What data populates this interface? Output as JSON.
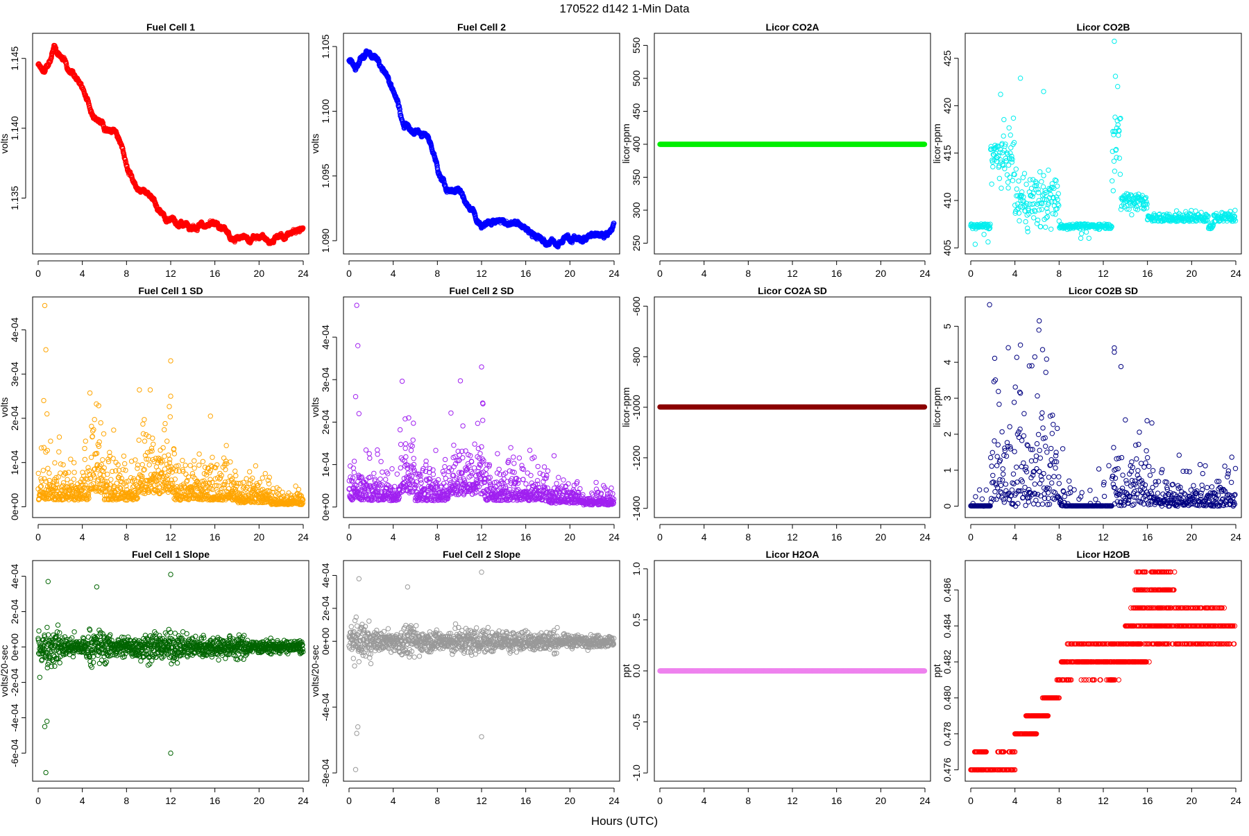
{
  "figure": {
    "title": "170522   d142   1-Min Data",
    "xlabel": "Hours (UTC)"
  },
  "chart_data": [
    {
      "type": "scatter",
      "title": "Fuel Cell 1",
      "ylabel": "volts",
      "color": "#ff0000",
      "xlim": [
        0,
        24
      ],
      "ylim": [
        1.1313,
        1.1465
      ],
      "xticks": [
        "0",
        "4",
        "8",
        "12",
        "16",
        "20",
        "24"
      ],
      "yticks": [
        {
          "v": 1.135,
          "label": "1.135"
        },
        {
          "v": 1.14,
          "label": "1.140"
        },
        {
          "v": 1.145,
          "label": "1.145"
        }
      ],
      "gen": "walk",
      "noise": 0.00025,
      "anchors": [
        [
          0,
          1.1445
        ],
        [
          0.6,
          1.144
        ],
        [
          1.0,
          1.1448
        ],
        [
          1.5,
          1.1457
        ],
        [
          2.2,
          1.145
        ],
        [
          3.5,
          1.1438
        ],
        [
          4.5,
          1.142
        ],
        [
          5.0,
          1.1405
        ],
        [
          6.0,
          1.14
        ],
        [
          7.0,
          1.1398
        ],
        [
          7.6,
          1.1385
        ],
        [
          8.2,
          1.137
        ],
        [
          8.8,
          1.136
        ],
        [
          9.5,
          1.1357
        ],
        [
          10.5,
          1.135
        ],
        [
          11.0,
          1.134
        ],
        [
          12.0,
          1.1333
        ],
        [
          13.0,
          1.1332
        ],
        [
          15.5,
          1.1331
        ],
        [
          16.5,
          1.1328
        ],
        [
          17.5,
          1.1322
        ],
        [
          19.0,
          1.132
        ],
        [
          20.0,
          1.1322
        ],
        [
          21.0,
          1.132
        ],
        [
          22.0,
          1.1322
        ],
        [
          23.0,
          1.1325
        ],
        [
          24.0,
          1.133
        ]
      ]
    },
    {
      "type": "scatter",
      "title": "Fuel Cell 2",
      "ylabel": "volts",
      "color": "#0000ff",
      "xlim": [
        0,
        24
      ],
      "ylim": [
        1.0893,
        1.1057
      ],
      "xticks": [
        "0",
        "4",
        "8",
        "12",
        "16",
        "20",
        "24"
      ],
      "yticks": [
        {
          "v": 1.09,
          "label": "1.090"
        },
        {
          "v": 1.095,
          "label": "1.095"
        },
        {
          "v": 1.1,
          "label": "1.100"
        },
        {
          "v": 1.105,
          "label": "1.105"
        }
      ],
      "gen": "walk",
      "noise": 0.00028,
      "anchors": [
        [
          0,
          1.104
        ],
        [
          0.6,
          1.103
        ],
        [
          1.0,
          1.104
        ],
        [
          1.5,
          1.1045
        ],
        [
          2.5,
          1.104
        ],
        [
          3.5,
          1.1025
        ],
        [
          4.5,
          1.1005
        ],
        [
          5.0,
          1.0988
        ],
        [
          6.0,
          1.0985
        ],
        [
          7.0,
          1.0982
        ],
        [
          7.6,
          1.097
        ],
        [
          8.2,
          1.095
        ],
        [
          8.8,
          1.094
        ],
        [
          10.0,
          1.094
        ],
        [
          11.0,
          1.0925
        ],
        [
          12.0,
          1.0915
        ],
        [
          13.0,
          1.0915
        ],
        [
          15.5,
          1.0912
        ],
        [
          16.5,
          1.0905
        ],
        [
          17.5,
          1.09
        ],
        [
          19.0,
          1.0898
        ],
        [
          20.0,
          1.0902
        ],
        [
          21.0,
          1.0902
        ],
        [
          22.0,
          1.0904
        ],
        [
          23.0,
          1.0905
        ],
        [
          24.0,
          1.0912
        ]
      ]
    },
    {
      "type": "scatter",
      "title": "Licor CO2A",
      "ylabel": "licor-ppm",
      "color": "#00ee00",
      "xlim": [
        0,
        24
      ],
      "ylim": [
        240,
        562
      ],
      "xticks": [
        "0",
        "4",
        "8",
        "12",
        "16",
        "20",
        "24"
      ],
      "yticks": [
        {
          "v": 250,
          "label": "250"
        },
        {
          "v": 300,
          "label": "300"
        },
        {
          "v": 350,
          "label": "350"
        },
        {
          "v": 400,
          "label": "400"
        },
        {
          "v": 450,
          "label": "450"
        },
        {
          "v": 500,
          "label": "500"
        },
        {
          "v": 550,
          "label": "550"
        }
      ],
      "gen": "constant",
      "value": 400
    },
    {
      "type": "scatter",
      "title": "Licor CO2B",
      "ylabel": "licor-ppm",
      "color": "#00eeee",
      "xlim": [
        0,
        24
      ],
      "ylim": [
        404.8,
        427.2
      ],
      "xticks": [
        "0",
        "4",
        "8",
        "12",
        "16",
        "20",
        "24"
      ],
      "yticks": [
        {
          "v": 405,
          "label": "405"
        },
        {
          "v": 410,
          "label": "410"
        },
        {
          "v": 415,
          "label": "415"
        },
        {
          "v": 420,
          "label": "420"
        },
        {
          "v": 425,
          "label": "425"
        }
      ],
      "gen": "co2b"
    },
    {
      "type": "scatter",
      "title": "Fuel Cell 1 SD",
      "ylabel": "volts",
      "color": "#ffa500",
      "xlim": [
        0,
        24
      ],
      "ylim": [
        -1.5e-05,
        0.000465
      ],
      "xticks": [
        "0",
        "4",
        "8",
        "12",
        "16",
        "20",
        "24"
      ],
      "yticks": [
        {
          "v": 0,
          "label": "0e+00"
        },
        {
          "v": 0.0001,
          "label": "1e-04"
        },
        {
          "v": 0.0002,
          "label": "2e-04"
        },
        {
          "v": 0.0003,
          "label": "3e-04"
        },
        {
          "v": 0.0004,
          "label": "4e-04"
        }
      ],
      "gen": "sd",
      "base": 3e-05,
      "scale": 0.0001,
      "spikes": [
        [
          0.6,
          0.000455
        ],
        [
          0.7,
          0.000355
        ],
        [
          0.5,
          0.00024
        ],
        [
          0.8,
          0.00021
        ],
        [
          12.0,
          0.00033
        ],
        [
          12.0,
          0.00025
        ],
        [
          15.6,
          0.000205
        ]
      ]
    },
    {
      "type": "scatter",
      "title": "Fuel Cell 2 SD",
      "ylabel": "volts",
      "color": "#a020f0",
      "xlim": [
        0,
        24
      ],
      "ylim": [
        -1.5e-05,
        0.000485
      ],
      "xticks": [
        "0",
        "4",
        "8",
        "12",
        "16",
        "20",
        "24"
      ],
      "yticks": [
        {
          "v": 0,
          "label": "0e+00"
        },
        {
          "v": 0.0001,
          "label": "1e-04"
        },
        {
          "v": 0.0002,
          "label": "2e-04"
        },
        {
          "v": 0.0003,
          "label": "3e-04"
        },
        {
          "v": 0.0004,
          "label": "4e-04"
        }
      ],
      "gen": "sd",
      "base": 3e-05,
      "scale": 0.0001,
      "spikes": [
        [
          0.7,
          0.000475
        ],
        [
          0.8,
          0.00038
        ],
        [
          0.6,
          0.00026
        ],
        [
          0.9,
          0.00022
        ],
        [
          12.0,
          0.00033
        ],
        [
          12.1,
          0.000245
        ],
        [
          5.4,
          0.00021
        ]
      ]
    },
    {
      "type": "scatter",
      "title": "Licor CO2A SD",
      "ylabel": "licor-ppm",
      "color": "#8b0000",
      "xlim": [
        0,
        24
      ],
      "ylim": [
        -1420,
        -580
      ],
      "xticks": [
        "0",
        "4",
        "8",
        "12",
        "16",
        "20",
        "24"
      ],
      "yticks": [
        {
          "v": -1400,
          "label": "-1400"
        },
        {
          "v": -1200,
          "label": "-1200"
        },
        {
          "v": -1000,
          "label": "-1000"
        },
        {
          "v": -800,
          "label": "-800"
        },
        {
          "v": -600,
          "label": "-600"
        }
      ],
      "gen": "constant",
      "value": -999
    },
    {
      "type": "scatter",
      "title": "Licor CO2B SD",
      "ylabel": "licor-ppm",
      "color": "#000080",
      "xlim": [
        0,
        24
      ],
      "ylim": [
        -0.2,
        5.7
      ],
      "xticks": [
        "0",
        "4",
        "8",
        "12",
        "16",
        "20",
        "24"
      ],
      "yticks": [
        {
          "v": 0,
          "label": "0"
        },
        {
          "v": 1,
          "label": "1"
        },
        {
          "v": 2,
          "label": "2"
        },
        {
          "v": 3,
          "label": "3"
        },
        {
          "v": 4,
          "label": "4"
        },
        {
          "v": 5,
          "label": "5"
        }
      ],
      "gen": "co2bsd",
      "spikes": [
        [
          1.7,
          5.6
        ],
        [
          6.2,
          5.15
        ],
        [
          4.5,
          4.48
        ],
        [
          13.0,
          4.4
        ],
        [
          13.0,
          4.28
        ],
        [
          6.5,
          4.35
        ],
        [
          5.8,
          4.15
        ],
        [
          5.3,
          3.9
        ]
      ]
    },
    {
      "type": "scatter",
      "title": "Fuel Cell 1 Slope",
      "ylabel": "volts/20-sec",
      "color": "#006400",
      "xlim": [
        0,
        24
      ],
      "ylim": [
        -0.000735,
        0.000465
      ],
      "xticks": [
        "0",
        "4",
        "8",
        "12",
        "16",
        "20",
        "24"
      ],
      "yticks": [
        {
          "v": -0.0006,
          "label": "-6e-04"
        },
        {
          "v": -0.0004,
          "label": "-4e-04"
        },
        {
          "v": -0.0002,
          "label": "-2e-04"
        },
        {
          "v": 0,
          "label": "0e+00"
        },
        {
          "v": 0.0002,
          "label": "2e-04"
        },
        {
          "v": 0.0004,
          "label": "4e-04"
        }
      ],
      "gen": "slope",
      "scale": 6e-05,
      "spikes": [
        [
          0.7,
          -0.00071
        ],
        [
          0.6,
          -0.00045
        ],
        [
          0.8,
          -0.00042
        ],
        [
          12.0,
          0.00041
        ],
        [
          12.0,
          -0.0006
        ],
        [
          0.9,
          0.00037
        ],
        [
          5.3,
          0.00034
        ]
      ]
    },
    {
      "type": "scatter",
      "title": "Fuel Cell 2 Slope",
      "ylabel": "volts/20-sec",
      "color": "#999999",
      "xlim": [
        0,
        24
      ],
      "ylim": [
        -0.000825,
        0.000465
      ],
      "xticks": [
        "0",
        "4",
        "8",
        "12",
        "16",
        "20",
        "24"
      ],
      "yticks": [
        {
          "v": -0.0008,
          "label": "-8e-04"
        },
        {
          "v": -0.0004,
          "label": "-4e-04"
        },
        {
          "v": 0,
          "label": "0e+00"
        },
        {
          "v": 0.0002,
          "label": "2e-04"
        },
        {
          "v": 0.0004,
          "label": "4e-04"
        }
      ],
      "gen": "slope",
      "scale": 6e-05,
      "spikes": [
        [
          0.6,
          -0.00078
        ],
        [
          0.7,
          -0.00056
        ],
        [
          0.8,
          -0.00052
        ],
        [
          12.0,
          0.00042
        ],
        [
          12.0,
          -0.00058
        ],
        [
          0.9,
          0.00038
        ],
        [
          5.3,
          0.00033
        ]
      ]
    },
    {
      "type": "scatter",
      "title": "Licor H2OA",
      "ylabel": "ppt",
      "color": "#ee82ee",
      "xlim": [
        0,
        24
      ],
      "ylim": [
        -1.04,
        1.04
      ],
      "xticks": [
        "0",
        "4",
        "8",
        "12",
        "16",
        "20",
        "24"
      ],
      "yticks": [
        {
          "v": -1.0,
          "label": "-1.0"
        },
        {
          "v": -0.5,
          "label": "-0.5"
        },
        {
          "v": 0.0,
          "label": "0.0"
        },
        {
          "v": 0.5,
          "label": "0.5"
        },
        {
          "v": 1.0,
          "label": "1.0"
        }
      ],
      "gen": "constant",
      "value": 0
    },
    {
      "type": "scatter",
      "title": "Licor H2OB",
      "ylabel": "ppt",
      "color": "#ff0000",
      "xlim": [
        0,
        24
      ],
      "ylim": [
        0.4756,
        0.4874
      ],
      "xticks": [
        "0",
        "4",
        "8",
        "12",
        "16",
        "20",
        "24"
      ],
      "yticks": [
        {
          "v": 0.476,
          "label": "0.476"
        },
        {
          "v": 0.478,
          "label": "0.478"
        },
        {
          "v": 0.48,
          "label": "0.480"
        },
        {
          "v": 0.482,
          "label": "0.482"
        },
        {
          "v": 0.484,
          "label": "0.484"
        },
        {
          "v": 0.486,
          "label": "0.486"
        }
      ],
      "gen": "steps",
      "segments": [
        [
          0,
          4,
          0.476,
          0.8
        ],
        [
          0.3,
          1.5,
          0.477,
          0.7
        ],
        [
          2.4,
          3.0,
          0.477,
          0.6
        ],
        [
          3.4,
          4.0,
          0.477,
          0.5
        ],
        [
          4.0,
          4.6,
          0.478,
          0.7
        ],
        [
          4.5,
          6.0,
          0.478,
          0.9
        ],
        [
          5.0,
          7.0,
          0.479,
          0.9
        ],
        [
          6.5,
          8.0,
          0.48,
          0.9
        ],
        [
          7.8,
          9.0,
          0.481,
          0.7
        ],
        [
          8.2,
          16.2,
          0.482,
          0.8
        ],
        [
          8.5,
          14.0,
          0.481,
          0.2
        ],
        [
          8.7,
          15.5,
          0.483,
          0.7
        ],
        [
          12.5,
          13.0,
          0.481,
          0.8
        ],
        [
          13.5,
          24.0,
          0.483,
          0.5
        ],
        [
          14.0,
          24.0,
          0.484,
          0.7
        ],
        [
          14.5,
          23.0,
          0.485,
          0.6
        ],
        [
          14.8,
          18.5,
          0.486,
          0.6
        ],
        [
          15.0,
          18.5,
          0.487,
          0.5
        ]
      ]
    }
  ]
}
